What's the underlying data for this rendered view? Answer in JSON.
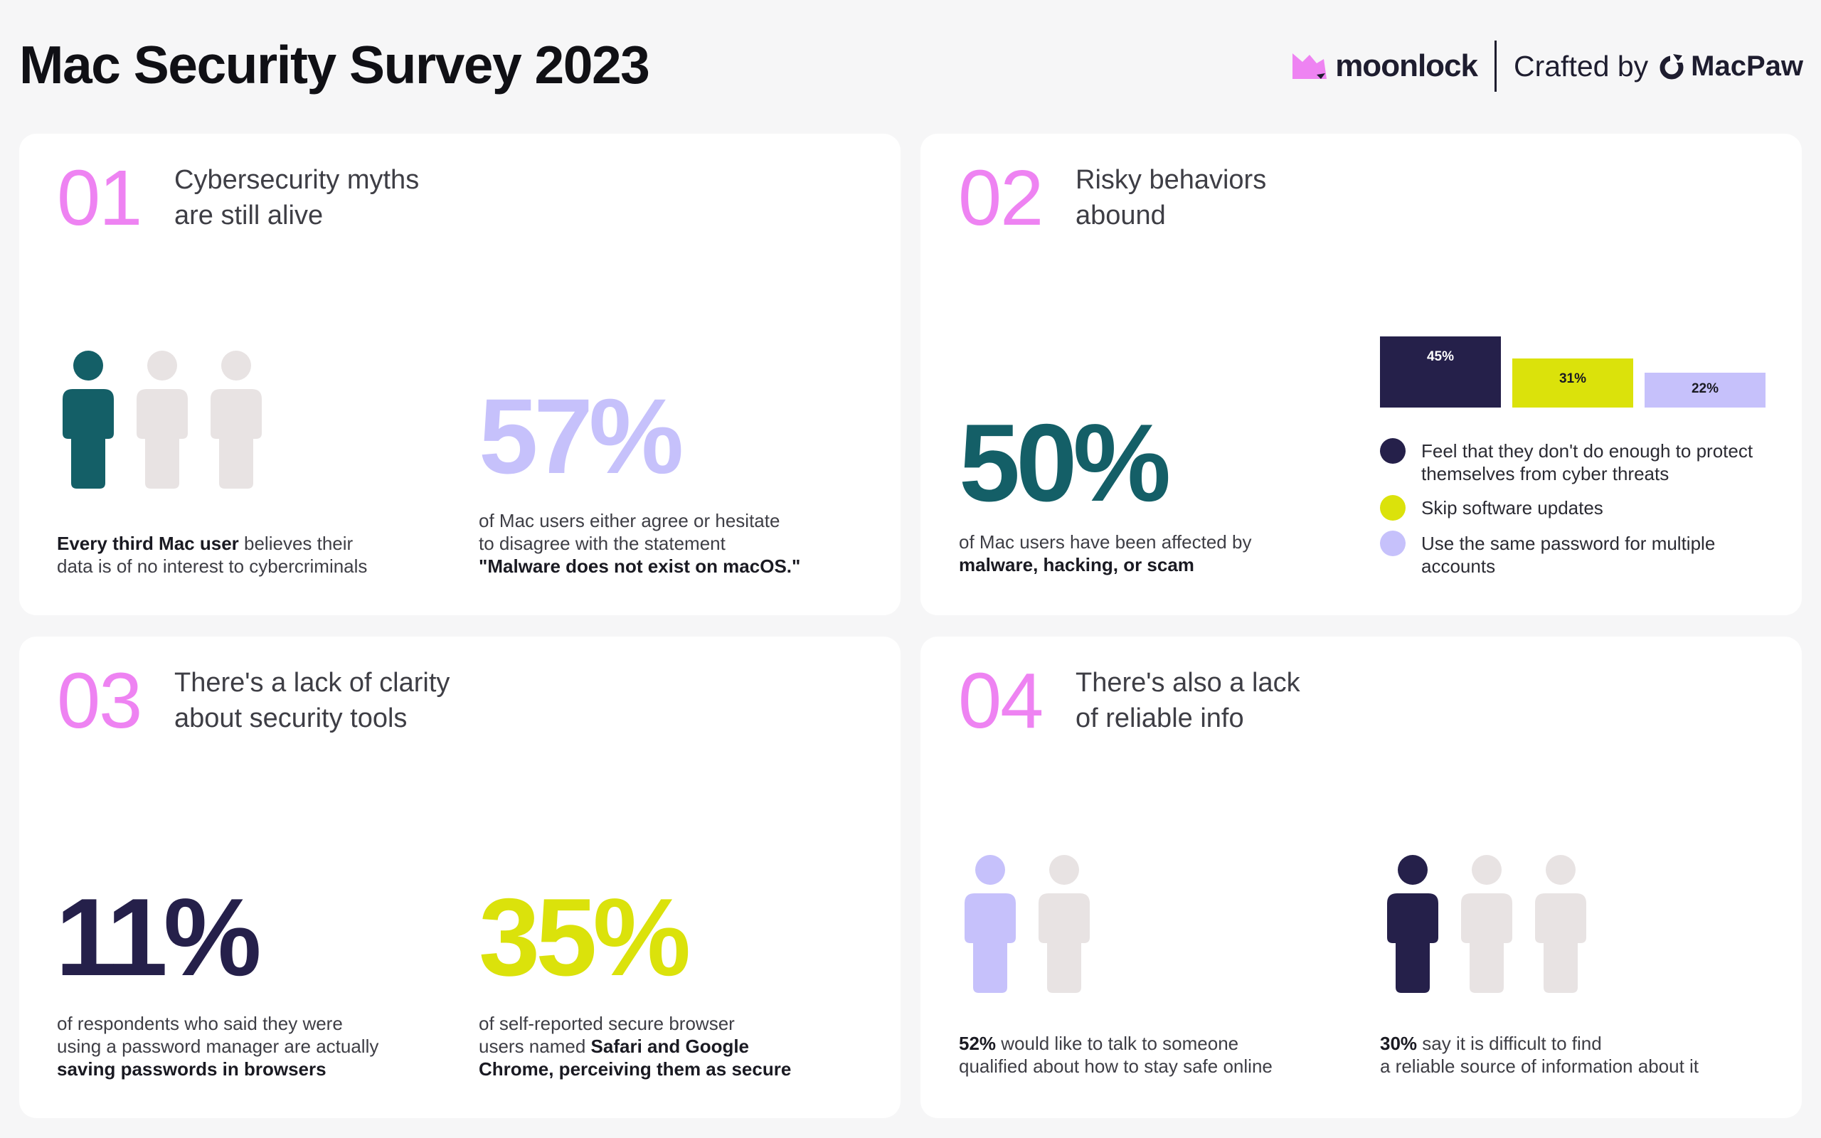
{
  "page": {
    "title": "Mac Security Survey 2023"
  },
  "brand": {
    "moonlock": "moonlock",
    "crafted_by": "Crafted by",
    "macpaw": "MacPaw"
  },
  "colors": {
    "pink": "#ee83f2",
    "teal": "#145f67",
    "navy": "#25204a",
    "lime": "#dbe20b",
    "lavender": "#c6c1fb",
    "grey_person": "#e8e3e3"
  },
  "cards": {
    "c1": {
      "number": "01",
      "heading": "Cybersecurity myths\nare still alive",
      "stat_a": {
        "highlight": "Every third Mac user",
        "rest_1": " believes their",
        "rest_2": "data is of no interest to cybercriminals",
        "people_total": 3,
        "people_highlighted": 1
      },
      "stat_b": {
        "value": "57%",
        "line1": "of Mac users either agree or hesitate",
        "line2": "to disagree with the statement",
        "quote": "\"Malware does not exist on macOS.\""
      }
    },
    "c2": {
      "number": "02",
      "heading": "Risky behaviors\nabound",
      "stat": {
        "value": "50%",
        "line1": "of Mac users have been affected by",
        "bold": "malware, hacking, or scam"
      },
      "legend": [
        {
          "label": "Feel that they don't do enough to protect themselves from cyber threats",
          "color": "#25204a"
        },
        {
          "label": "Skip software updates",
          "color": "#dbe20b"
        },
        {
          "label": "Use the same password for multiple accounts",
          "color": "#c6c1fb"
        }
      ]
    },
    "c3": {
      "number": "03",
      "heading": "There's a lack of clarity\nabout security tools",
      "stat_a": {
        "value": "11%",
        "line1": "of respondents who said they were",
        "line2": "using a password manager are actually",
        "bold": "saving passwords in browsers"
      },
      "stat_b": {
        "value": "35%",
        "line1": "of self-reported secure browser",
        "line2_pre": "users named ",
        "bold_1": "Safari and Google",
        "bold_2": "Chrome, perceiving them as secure"
      }
    },
    "c4": {
      "number": "04",
      "heading": "There's also a lack\nof reliable info",
      "stat_a": {
        "bold": "52%",
        "rest_1": " would like to talk to someone",
        "rest_2": "qualified about how to stay safe online",
        "people_total": 2,
        "people_highlighted": 1
      },
      "stat_b": {
        "bold": "30%",
        "rest_1": " say it is difficult to find",
        "rest_2": "a reliable source of information about it",
        "people_total": 3,
        "people_highlighted": 1
      }
    }
  },
  "chart_data": {
    "type": "bar",
    "categories": [
      "Feel that they don't do enough to protect themselves from cyber threats",
      "Skip software updates",
      "Use the same password for multiple accounts"
    ],
    "values": [
      45,
      31,
      22
    ],
    "value_labels": [
      "45%",
      "31%",
      "22%"
    ],
    "colors": [
      "#25204a",
      "#dbe20b",
      "#c6c1fb"
    ],
    "label_colors": [
      "#ffffff",
      "#1a1a22",
      "#1a1a22"
    ],
    "ylim": [
      0,
      45
    ],
    "title": "",
    "xlabel": "",
    "ylabel": ""
  }
}
